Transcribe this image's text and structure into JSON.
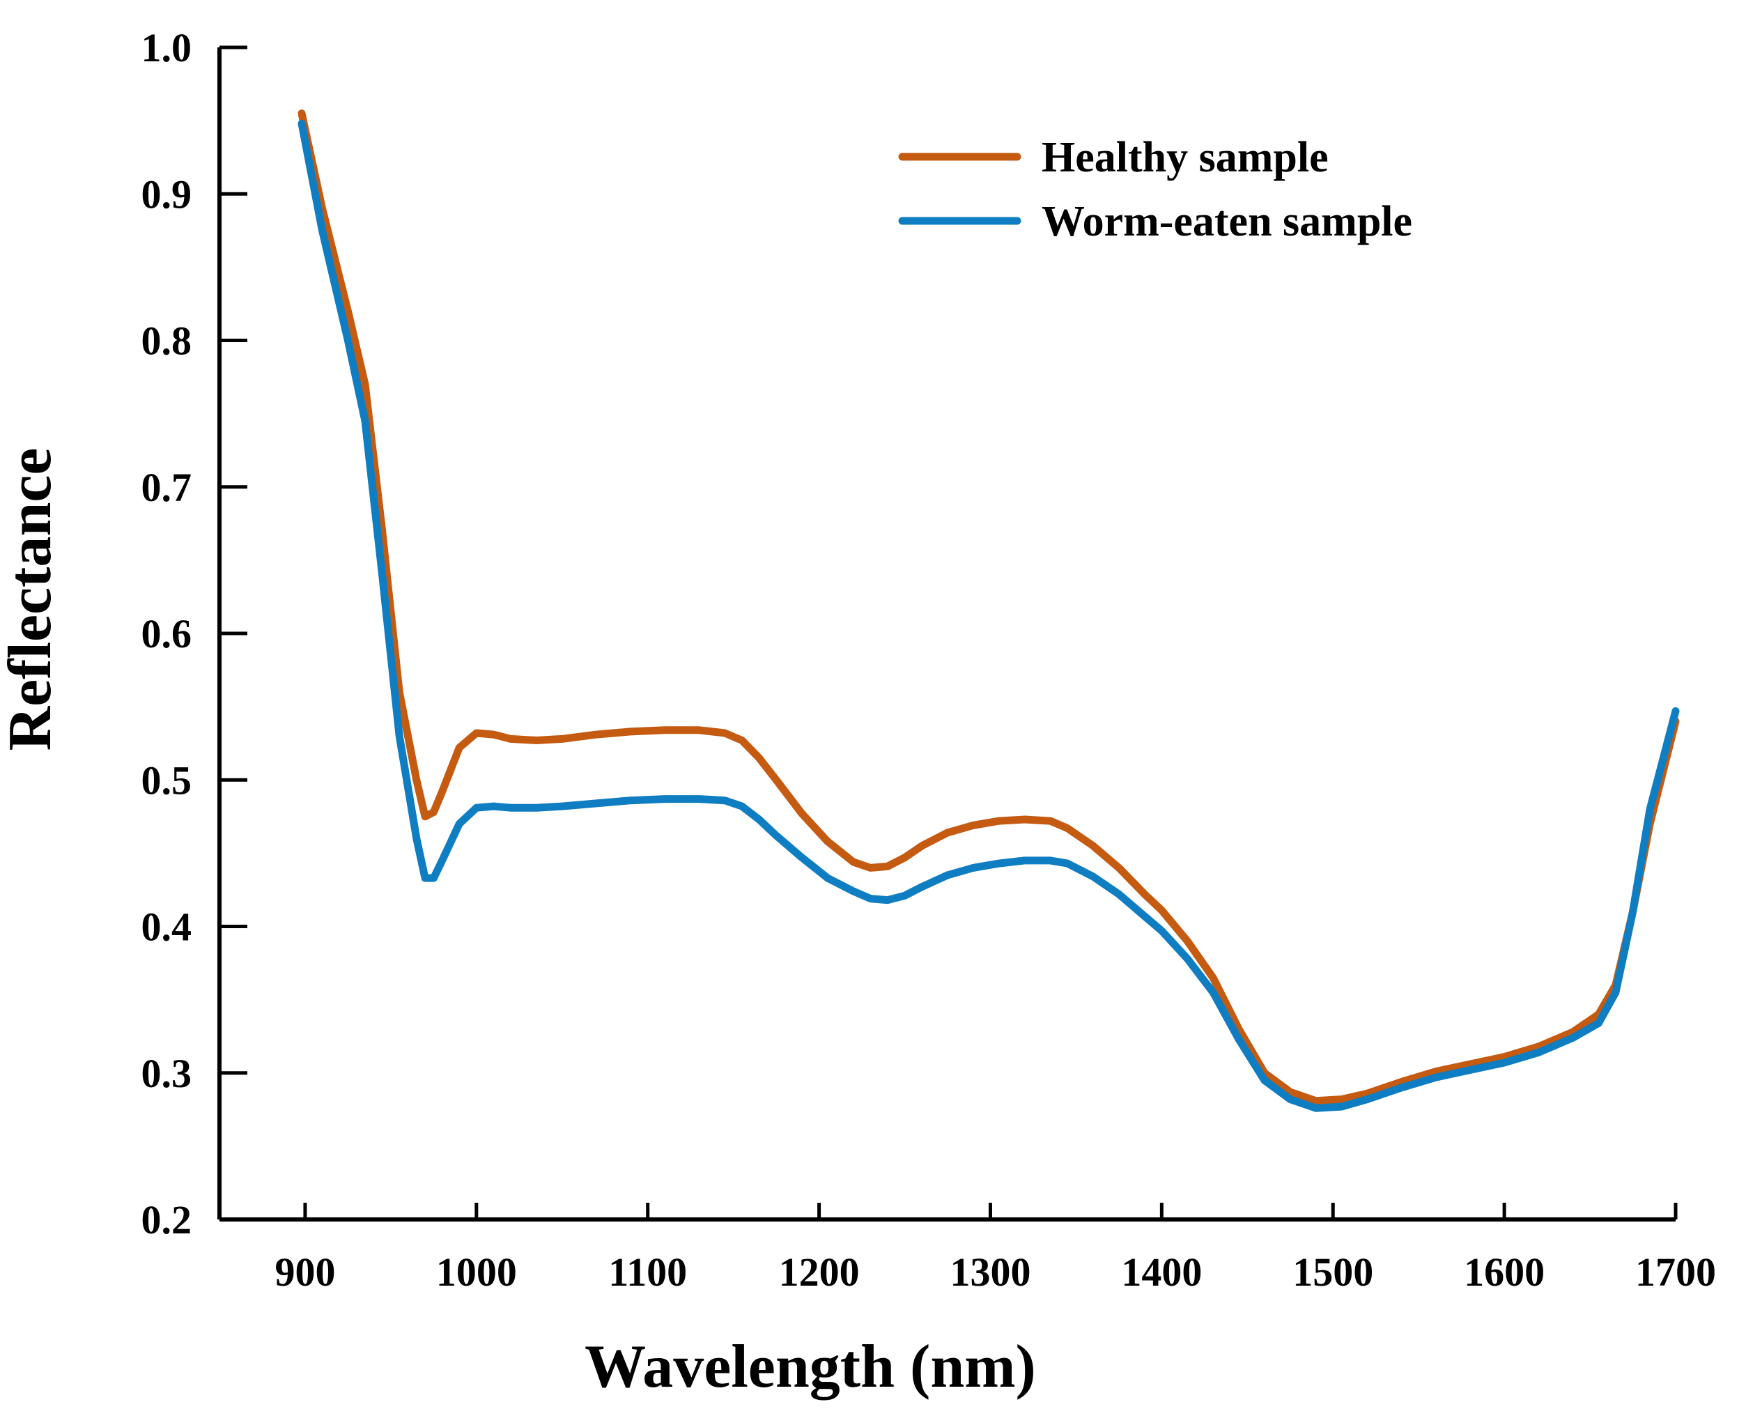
{
  "chart_data": {
    "type": "line",
    "xlabel": "Wavelength (nm)",
    "ylabel": "Reflectance",
    "xlim": [
      850,
      1700
    ],
    "ylim": [
      0.2,
      1.0
    ],
    "xticks": [
      900,
      1000,
      1100,
      1200,
      1300,
      1400,
      1500,
      1600,
      1700
    ],
    "yticks": [
      0.2,
      0.3,
      0.4,
      0.5,
      0.6,
      0.7,
      0.8,
      0.9,
      1.0
    ],
    "ytick_labels": [
      "0.2",
      "0.3",
      "0.4",
      "0.5",
      "0.6",
      "0.7",
      "0.8",
      "0.9",
      "1.0"
    ],
    "grid": false,
    "legend_position": "top-right",
    "series": [
      {
        "name": "Healthy sample",
        "color": "#C55A11",
        "x": [
          898,
          910,
          925,
          935,
          945,
          955,
          965,
          970,
          975,
          980,
          990,
          1000,
          1010,
          1020,
          1035,
          1050,
          1070,
          1090,
          1110,
          1130,
          1145,
          1155,
          1165,
          1175,
          1190,
          1205,
          1220,
          1230,
          1240,
          1250,
          1260,
          1275,
          1290,
          1305,
          1320,
          1335,
          1345,
          1360,
          1375,
          1390,
          1400,
          1415,
          1430,
          1445,
          1460,
          1475,
          1490,
          1505,
          1520,
          1540,
          1560,
          1580,
          1600,
          1620,
          1640,
          1655,
          1665,
          1675,
          1685,
          1700
        ],
        "y": [
          0.955,
          0.89,
          0.82,
          0.77,
          0.67,
          0.56,
          0.5,
          0.475,
          0.478,
          0.492,
          0.522,
          0.532,
          0.531,
          0.528,
          0.527,
          0.528,
          0.531,
          0.533,
          0.534,
          0.534,
          0.532,
          0.527,
          0.515,
          0.5,
          0.477,
          0.458,
          0.444,
          0.44,
          0.441,
          0.447,
          0.455,
          0.464,
          0.469,
          0.472,
          0.473,
          0.472,
          0.467,
          0.455,
          0.44,
          0.422,
          0.411,
          0.39,
          0.365,
          0.33,
          0.3,
          0.287,
          0.281,
          0.282,
          0.286,
          0.294,
          0.301,
          0.306,
          0.311,
          0.318,
          0.328,
          0.34,
          0.36,
          0.41,
          0.47,
          0.54
        ]
      },
      {
        "name": "Worm-eaten sample",
        "color": "#0F7DC2",
        "x": [
          898,
          910,
          925,
          935,
          945,
          955,
          965,
          970,
          975,
          980,
          990,
          1000,
          1010,
          1020,
          1035,
          1050,
          1070,
          1090,
          1110,
          1130,
          1145,
          1155,
          1165,
          1175,
          1190,
          1205,
          1220,
          1230,
          1240,
          1250,
          1260,
          1275,
          1290,
          1305,
          1320,
          1335,
          1345,
          1360,
          1375,
          1390,
          1400,
          1415,
          1430,
          1445,
          1460,
          1475,
          1490,
          1505,
          1520,
          1540,
          1560,
          1580,
          1600,
          1620,
          1640,
          1655,
          1665,
          1675,
          1685,
          1700
        ],
        "y": [
          0.948,
          0.875,
          0.8,
          0.745,
          0.64,
          0.53,
          0.46,
          0.433,
          0.433,
          0.445,
          0.47,
          0.481,
          0.482,
          0.481,
          0.481,
          0.482,
          0.484,
          0.486,
          0.487,
          0.487,
          0.486,
          0.482,
          0.473,
          0.462,
          0.447,
          0.433,
          0.424,
          0.419,
          0.418,
          0.421,
          0.427,
          0.435,
          0.44,
          0.443,
          0.445,
          0.445,
          0.443,
          0.434,
          0.422,
          0.407,
          0.397,
          0.378,
          0.355,
          0.323,
          0.295,
          0.282,
          0.276,
          0.277,
          0.282,
          0.29,
          0.297,
          0.302,
          0.307,
          0.314,
          0.324,
          0.334,
          0.355,
          0.41,
          0.48,
          0.547
        ]
      }
    ]
  }
}
